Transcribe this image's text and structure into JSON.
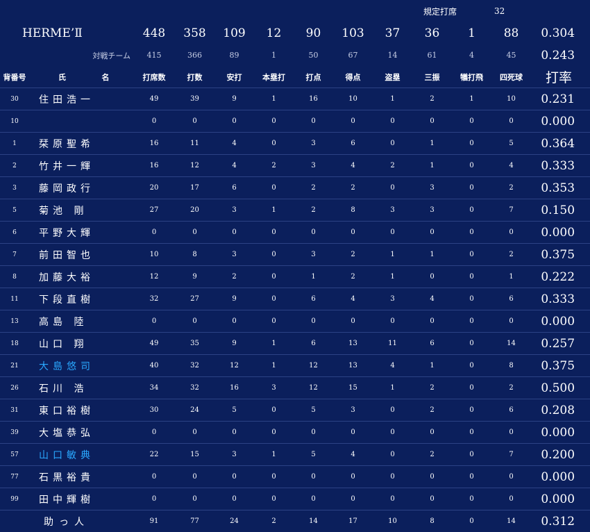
{
  "qualifying": {
    "label": "規定打席",
    "value": "32"
  },
  "team": {
    "name": "HERME’Ⅱ",
    "stats": [
      "448",
      "358",
      "109",
      "12",
      "90",
      "103",
      "37",
      "36",
      "1",
      "88"
    ],
    "avg": "0.304"
  },
  "opponent": {
    "label": "対戦チーム",
    "stats": [
      "415",
      "366",
      "89",
      "1",
      "50",
      "67",
      "14",
      "61",
      "4",
      "45"
    ],
    "avg": "0.243"
  },
  "headers": {
    "number": "背番号",
    "name_1": "氏",
    "name_2": "名",
    "cols": [
      "打席数",
      "打数",
      "安打",
      "本塁打",
      "打点",
      "得点",
      "盗塁",
      "三振",
      "犠打飛",
      "四死球"
    ],
    "avg": "打率"
  },
  "players": [
    {
      "number": "30",
      "name": "住田浩一",
      "stats": [
        "49",
        "39",
        "9",
        "1",
        "16",
        "10",
        "1",
        "2",
        "1",
        "10"
      ],
      "avg": "0.231",
      "highlight": false
    },
    {
      "number": "10",
      "name": "",
      "stats": [
        "0",
        "0",
        "0",
        "0",
        "0",
        "0",
        "0",
        "0",
        "0",
        "0"
      ],
      "avg": "0.000",
      "highlight": false
    },
    {
      "number": "1",
      "name": "栞原聖希",
      "stats": [
        "16",
        "11",
        "4",
        "0",
        "3",
        "6",
        "0",
        "1",
        "0",
        "5"
      ],
      "avg": "0.364",
      "highlight": false
    },
    {
      "number": "2",
      "name": "竹井一輝",
      "stats": [
        "16",
        "12",
        "4",
        "2",
        "3",
        "4",
        "2",
        "1",
        "0",
        "4"
      ],
      "avg": "0.333",
      "highlight": false
    },
    {
      "number": "3",
      "name": "藤岡政行",
      "stats": [
        "20",
        "17",
        "6",
        "0",
        "2",
        "2",
        "0",
        "3",
        "0",
        "2"
      ],
      "avg": "0.353",
      "highlight": false
    },
    {
      "number": "5",
      "name": "菊池 剛",
      "stats": [
        "27",
        "20",
        "3",
        "1",
        "2",
        "8",
        "3",
        "3",
        "0",
        "7"
      ],
      "avg": "0.150",
      "highlight": false
    },
    {
      "number": "6",
      "name": "平野大輝",
      "stats": [
        "0",
        "0",
        "0",
        "0",
        "0",
        "0",
        "0",
        "0",
        "0",
        "0"
      ],
      "avg": "0.000",
      "highlight": false
    },
    {
      "number": "7",
      "name": "前田智也",
      "stats": [
        "10",
        "8",
        "3",
        "0",
        "3",
        "2",
        "1",
        "1",
        "0",
        "2"
      ],
      "avg": "0.375",
      "highlight": false
    },
    {
      "number": "8",
      "name": "加藤大裕",
      "stats": [
        "12",
        "9",
        "2",
        "0",
        "1",
        "2",
        "1",
        "0",
        "0",
        "1"
      ],
      "avg": "0.222",
      "highlight": false
    },
    {
      "number": "11",
      "name": "下段直樹",
      "stats": [
        "32",
        "27",
        "9",
        "0",
        "6",
        "4",
        "3",
        "4",
        "0",
        "6"
      ],
      "avg": "0.333",
      "highlight": false
    },
    {
      "number": "13",
      "name": "高島 陸",
      "stats": [
        "0",
        "0",
        "0",
        "0",
        "0",
        "0",
        "0",
        "0",
        "0",
        "0"
      ],
      "avg": "0.000",
      "highlight": false
    },
    {
      "number": "18",
      "name": "山口 翔",
      "stats": [
        "49",
        "35",
        "9",
        "1",
        "6",
        "13",
        "11",
        "6",
        "0",
        "14"
      ],
      "avg": "0.257",
      "highlight": false
    },
    {
      "number": "21",
      "name": "大島悠司",
      "stats": [
        "40",
        "32",
        "12",
        "1",
        "12",
        "13",
        "4",
        "1",
        "0",
        "8"
      ],
      "avg": "0.375",
      "highlight": true
    },
    {
      "number": "26",
      "name": "石川 浩",
      "stats": [
        "34",
        "32",
        "16",
        "3",
        "12",
        "15",
        "1",
        "2",
        "0",
        "2"
      ],
      "avg": "0.500",
      "highlight": false
    },
    {
      "number": "31",
      "name": "東口裕樹",
      "stats": [
        "30",
        "24",
        "5",
        "0",
        "5",
        "3",
        "0",
        "2",
        "0",
        "6"
      ],
      "avg": "0.208",
      "highlight": false
    },
    {
      "number": "39",
      "name": "大塩恭弘",
      "stats": [
        "0",
        "0",
        "0",
        "0",
        "0",
        "0",
        "0",
        "0",
        "0",
        "0"
      ],
      "avg": "0.000",
      "highlight": false
    },
    {
      "number": "57",
      "name": "山口敏典",
      "stats": [
        "22",
        "15",
        "3",
        "1",
        "5",
        "4",
        "0",
        "2",
        "0",
        "7"
      ],
      "avg": "0.200",
      "highlight": true
    },
    {
      "number": "77",
      "name": "石黒裕貴",
      "stats": [
        "0",
        "0",
        "0",
        "0",
        "0",
        "0",
        "0",
        "0",
        "0",
        "0"
      ],
      "avg": "0.000",
      "highlight": false
    },
    {
      "number": "99",
      "name": "田中輝樹",
      "stats": [
        "0",
        "0",
        "0",
        "0",
        "0",
        "0",
        "0",
        "0",
        "0",
        "0"
      ],
      "avg": "0.000",
      "highlight": false
    }
  ],
  "helper": {
    "name": "助っ人",
    "stats": [
      "91",
      "77",
      "24",
      "2",
      "14",
      "17",
      "10",
      "8",
      "0",
      "14"
    ],
    "avg": "0.312"
  }
}
